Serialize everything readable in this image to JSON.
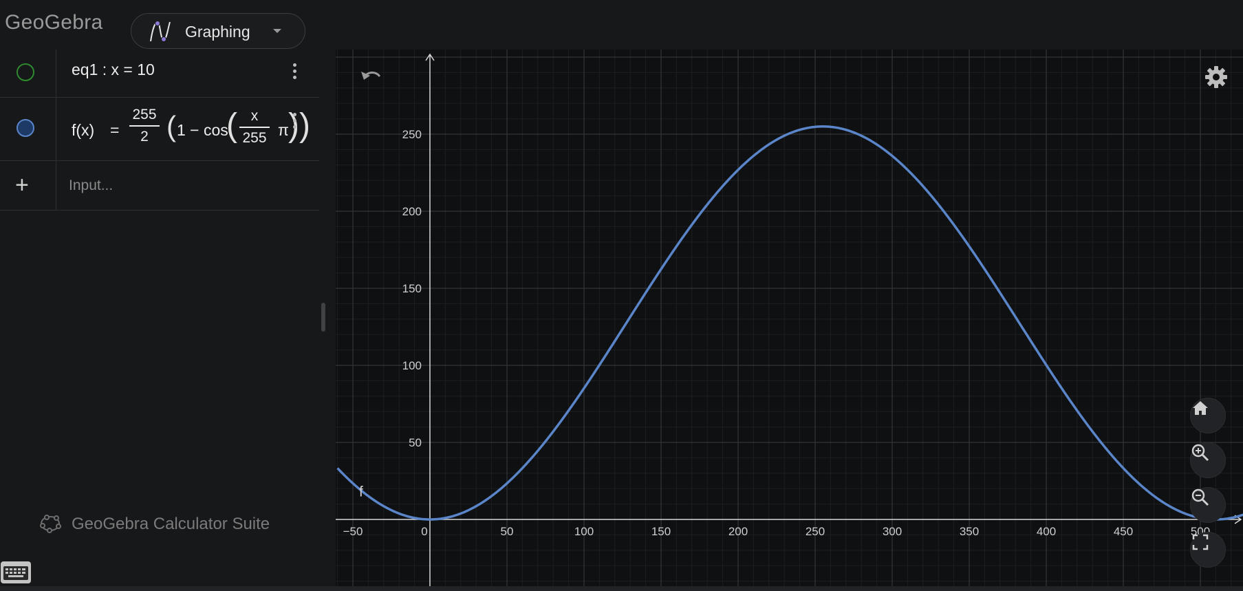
{
  "header": {
    "logo_text": "GeoGebra",
    "app_name": "Graphing"
  },
  "algebra": {
    "rows": [
      {
        "expression": "eq1 : x = 10",
        "color": "#2f8a2f",
        "visible": false
      },
      {
        "name": "f(x)",
        "equals": "=",
        "coef_num": "255",
        "coef_den": "2",
        "one_minus_cos": "1 − cos",
        "inner_num": "x",
        "inner_den": "255",
        "pi": "π",
        "color": "#5b85c9",
        "visible": true
      }
    ],
    "input_placeholder": "Input...",
    "suite_label": "GeoGebra Calculator Suite"
  },
  "chart_data": {
    "type": "line",
    "function_label": "f",
    "expression": "f(x) = 255/2 (1 - cos(x/255 π))",
    "xlim": [
      -60,
      530
    ],
    "ylim": [
      -42,
      300
    ],
    "x_ticks": [
      -50,
      0,
      50,
      100,
      150,
      200,
      250,
      300,
      350,
      400,
      450,
      500
    ],
    "y_ticks": [
      50,
      100,
      150,
      200,
      250
    ],
    "x_tick_labels": [
      "−50",
      "0",
      "50",
      "100",
      "150",
      "200",
      "250",
      "300",
      "350",
      "400",
      "450",
      "500"
    ],
    "y_tick_labels": [
      "50",
      "100",
      "150",
      "200",
      "250"
    ],
    "grid": true,
    "line_color": "#5b85c9",
    "background": "#0f1012"
  },
  "icons": {
    "undo": "undo-icon",
    "settings": "gear-icon",
    "home": "home-icon",
    "zoom_in": "zoom-in-icon",
    "zoom_out": "zoom-out-icon",
    "fullscreen": "fullscreen-icon"
  }
}
